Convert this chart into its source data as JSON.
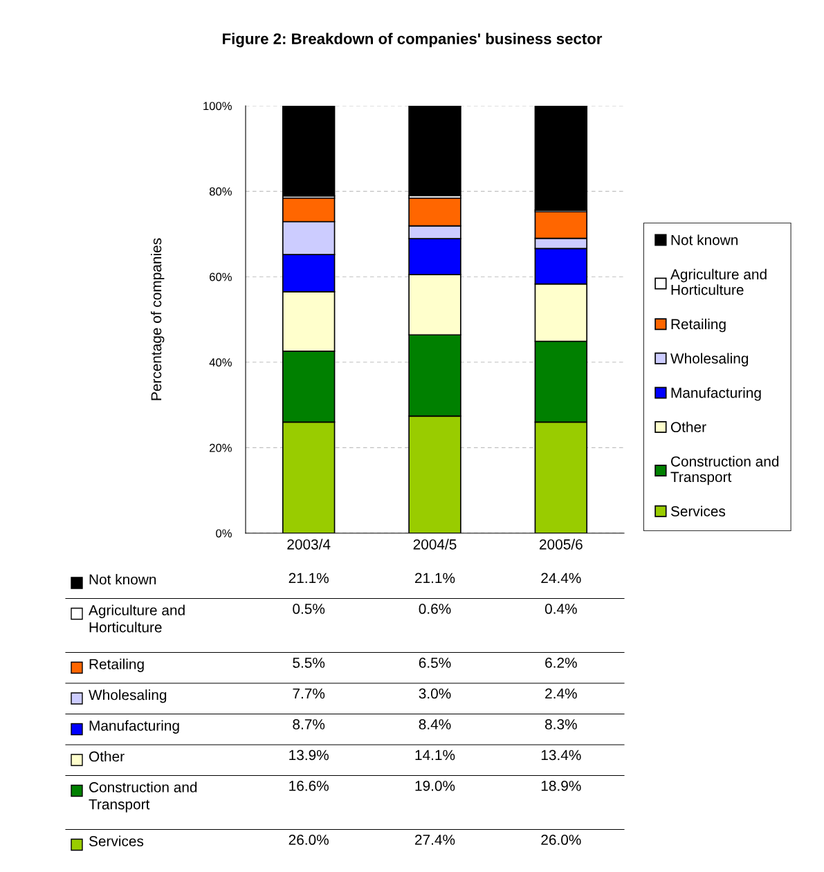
{
  "chart_data": {
    "type": "bar",
    "stacked": true,
    "title": "Figure 2: Breakdown of companies' business sector",
    "ylabel": "Percentage of companies",
    "categories": [
      "2003/4",
      "2004/5",
      "2005/6"
    ],
    "series": [
      {
        "name": "Services",
        "color": "#99cc00",
        "values": [
          26.0,
          27.4,
          26.0
        ],
        "value_labels": [
          "26.0%",
          "27.4%",
          "26.0%"
        ]
      },
      {
        "name": "Construction and Transport",
        "color": "#008000",
        "values": [
          16.6,
          19.0,
          18.9
        ],
        "value_labels": [
          "16.6%",
          "19.0%",
          "18.9%"
        ]
      },
      {
        "name": "Other",
        "color": "#ffffcc",
        "values": [
          13.9,
          14.1,
          13.4
        ],
        "value_labels": [
          "13.9%",
          "14.1%",
          "13.4%"
        ]
      },
      {
        "name": "Manufacturing",
        "color": "#0000ff",
        "values": [
          8.7,
          8.4,
          8.3
        ],
        "value_labels": [
          "8.7%",
          "8.4%",
          "8.3%"
        ]
      },
      {
        "name": "Wholesaling",
        "color": "#ccccff",
        "values": [
          7.7,
          3.0,
          2.4
        ],
        "value_labels": [
          "7.7%",
          "3.0%",
          "2.4%"
        ]
      },
      {
        "name": "Retailing",
        "color": "#ff6600",
        "values": [
          5.5,
          6.5,
          6.2
        ],
        "value_labels": [
          "5.5%",
          "6.5%",
          "6.2%"
        ]
      },
      {
        "name": "Agriculture and Horticulture",
        "color": "#ffffff",
        "values": [
          0.5,
          0.6,
          0.4
        ],
        "value_labels": [
          "0.5%",
          "0.6%",
          "0.4%"
        ]
      },
      {
        "name": "Not known",
        "color": "#000000",
        "values": [
          21.1,
          21.1,
          24.4
        ],
        "value_labels": [
          "21.1%",
          "21.1%",
          "24.4%"
        ]
      }
    ],
    "ylim": [
      0,
      100
    ],
    "yticks": [
      {
        "value": 0,
        "label": "0%"
      },
      {
        "value": 20,
        "label": "20%"
      },
      {
        "value": 40,
        "label": "40%"
      },
      {
        "value": 60,
        "label": "60%"
      },
      {
        "value": 80,
        "label": "80%"
      },
      {
        "value": 100,
        "label": "100%"
      }
    ],
    "grid": "y",
    "legend": "right"
  }
}
